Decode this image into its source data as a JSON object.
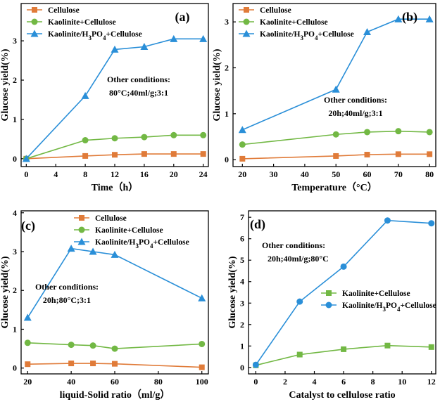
{
  "chart_data": [
    {
      "type": "line",
      "panel_label": "(a)",
      "xlabel": "Time（h）",
      "ylabel": "Glucose yield(%)",
      "x": [
        0,
        8,
        12,
        16,
        20,
        24
      ],
      "xlim": [
        -0.7,
        24.7
      ],
      "ylim": [
        -0.2,
        3.95
      ],
      "xticks": [
        "0",
        "4",
        "8",
        "12",
        "16",
        "20",
        "24"
      ],
      "xtick_values": [
        0,
        4,
        8,
        12,
        16,
        20,
        24
      ],
      "yticks": [
        "0",
        "1",
        "2",
        "3"
      ],
      "ytick_values": [
        0,
        1,
        2,
        3
      ],
      "annotation": [
        "Other conditions:",
        "80°C;40ml/g;3:1"
      ],
      "series": [
        {
          "name": "Cellulose",
          "values": [
            0,
            0.07,
            0.1,
            0.12,
            0.12,
            0.12
          ],
          "color": "#E07B39",
          "marker": "square"
        },
        {
          "name": "Kaolinite+Cellulose",
          "values": [
            0,
            0.47,
            0.52,
            0.55,
            0.6,
            0.6
          ],
          "color": "#72B844",
          "marker": "circle"
        },
        {
          "name": "Kaolinite/H3PO4+Cellulose",
          "legend_base": "Kaolinite/H",
          "legend_sub": "3",
          "legend_mid": "PO",
          "legend_sub2": "4",
          "legend_end": "+Cellulose",
          "values": [
            0,
            1.6,
            2.78,
            2.85,
            3.05,
            3.05
          ],
          "color": "#2A8FD8",
          "marker": "triangle"
        }
      ]
    },
    {
      "type": "line",
      "panel_label": "(b)",
      "xlabel": "Temperature（°C）",
      "ylabel": "Glucose yield(%)",
      "x": [
        20,
        50,
        60,
        70,
        80
      ],
      "xlim": [
        17,
        82
      ],
      "ylim": [
        -0.15,
        3.4
      ],
      "xticks": [
        "20",
        "30",
        "40",
        "50",
        "60",
        "70",
        "80"
      ],
      "xtick_values": [
        20,
        30,
        40,
        50,
        60,
        70,
        80
      ],
      "yticks": [
        "0",
        "1",
        "2",
        "3"
      ],
      "ytick_values": [
        0,
        1,
        2,
        3
      ],
      "annotation": [
        "Other conditions:",
        "20h;40ml/g;3:1"
      ],
      "series": [
        {
          "name": "Cellulose",
          "values": [
            0.02,
            0.08,
            0.11,
            0.12,
            0.12
          ],
          "color": "#E07B39",
          "marker": "square"
        },
        {
          "name": "Kaolinite+Cellulose",
          "values": [
            0.33,
            0.55,
            0.6,
            0.62,
            0.6
          ],
          "color": "#72B844",
          "marker": "circle"
        },
        {
          "name": "Kaolinite/H3PO4+Cellulose",
          "legend_base": "Kaolinite/H",
          "legend_sub": "3",
          "legend_mid": "PO",
          "legend_sub2": "4",
          "legend_end": "+Cellulose",
          "values": [
            0.65,
            1.53,
            2.78,
            3.06,
            3.06
          ],
          "color": "#2A8FD8",
          "marker": "triangle"
        }
      ]
    },
    {
      "type": "line",
      "panel_label": "(c)",
      "xlabel": "liquid-Solid ratio（ml/g）",
      "ylabel": "Glucose yield(%)",
      "x": [
        20,
        40,
        50,
        60,
        100
      ],
      "xlim": [
        17,
        103
      ],
      "ylim": [
        -0.15,
        4.05
      ],
      "xticks": [
        "20",
        "40",
        "60",
        "80",
        "100"
      ],
      "xtick_values": [
        20,
        40,
        60,
        80,
        100
      ],
      "yticks": [
        "0",
        "1",
        "2",
        "3",
        "4"
      ],
      "ytick_values": [
        0,
        1,
        2,
        3,
        4
      ],
      "annotation": [
        "Other conditions:",
        "20h;80°C;3:1"
      ],
      "series": [
        {
          "name": "Cellulose",
          "values": [
            0.1,
            0.12,
            0.12,
            0.11,
            0.02
          ],
          "color": "#E07B39",
          "marker": "square"
        },
        {
          "name": "Kaolinite+Cellulose",
          "values": [
            0.65,
            0.6,
            0.58,
            0.5,
            0.62
          ],
          "color": "#72B844",
          "marker": "circle"
        },
        {
          "name": "Kaolinite/H3PO4+Cellulose",
          "legend_base": "Kaolinite/H",
          "legend_sub": "3",
          "legend_mid": "PO",
          "legend_sub2": "4",
          "legend_end": "+Cellulose",
          "values": [
            1.3,
            3.08,
            3.0,
            2.92,
            1.8
          ],
          "color": "#2A8FD8",
          "marker": "triangle"
        }
      ]
    },
    {
      "type": "line",
      "panel_label": "(d)",
      "xlabel": "Catalyst to cellulose ratio",
      "ylabel": "Glucose yield(%)",
      "x": [
        0,
        3,
        6,
        9,
        12
      ],
      "xlim": [
        -0.5,
        12.3
      ],
      "ylim": [
        -0.3,
        7.3
      ],
      "xticks": [
        "0",
        "2",
        "4",
        "6",
        "8",
        "10",
        "12"
      ],
      "xtick_values": [
        0,
        2,
        4,
        6,
        8,
        10,
        12
      ],
      "yticks": [
        "0",
        "1",
        "2",
        "3",
        "4",
        "5",
        "6",
        "7"
      ],
      "ytick_values": [
        0,
        1,
        2,
        3,
        4,
        5,
        6,
        7
      ],
      "annotation": [
        "Other conditions:",
        "20h;40ml/g;80°C"
      ],
      "series": [
        {
          "name": "Kaolinite+Cellulose",
          "values": [
            0.1,
            0.6,
            0.85,
            1.02,
            0.95
          ],
          "color": "#72B844",
          "marker": "square"
        },
        {
          "name": "Kaolinite/H3PO4+Cellulose",
          "legend_base": "Kaolinite/H",
          "legend_sub": "3",
          "legend_mid": "PO",
          "legend_sub2": "4",
          "legend_end": "+Cellulose",
          "values": [
            0.12,
            3.07,
            4.7,
            6.85,
            6.72
          ],
          "color": "#2A8FD8",
          "marker": "circle"
        }
      ]
    }
  ]
}
